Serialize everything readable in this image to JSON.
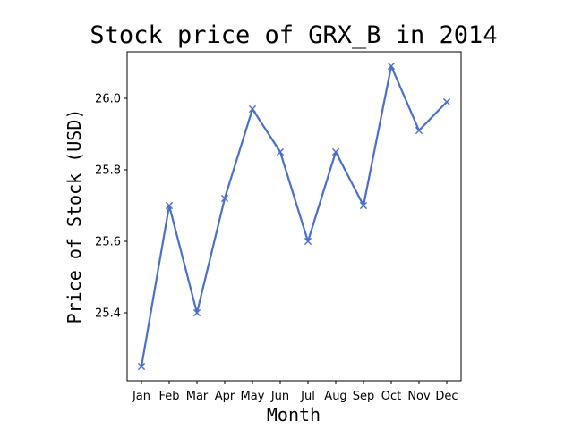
{
  "chart_data": {
    "type": "line",
    "title": "Stock price of GRX_B in 2014",
    "xlabel": "Month",
    "ylabel": "Price of Stock (USD)",
    "categories": [
      "Jan",
      "Feb",
      "Mar",
      "Apr",
      "May",
      "Jun",
      "Jul",
      "Aug",
      "Sep",
      "Oct",
      "Nov",
      "Dec"
    ],
    "series": [
      {
        "values": [
          25.25,
          25.7,
          25.4,
          25.72,
          25.97,
          25.85,
          25.6,
          25.85,
          25.7,
          26.09,
          25.91,
          25.99
        ],
        "color": "#4a6fcc",
        "marker": "x"
      }
    ],
    "yticks": [
      25.4,
      25.6,
      25.8,
      26.0
    ],
    "ytick_labels": [
      "25.4",
      "25.6",
      "25.8",
      "26.0"
    ],
    "ylim": [
      25.21,
      26.13
    ],
    "grid": false,
    "legend": false
  }
}
